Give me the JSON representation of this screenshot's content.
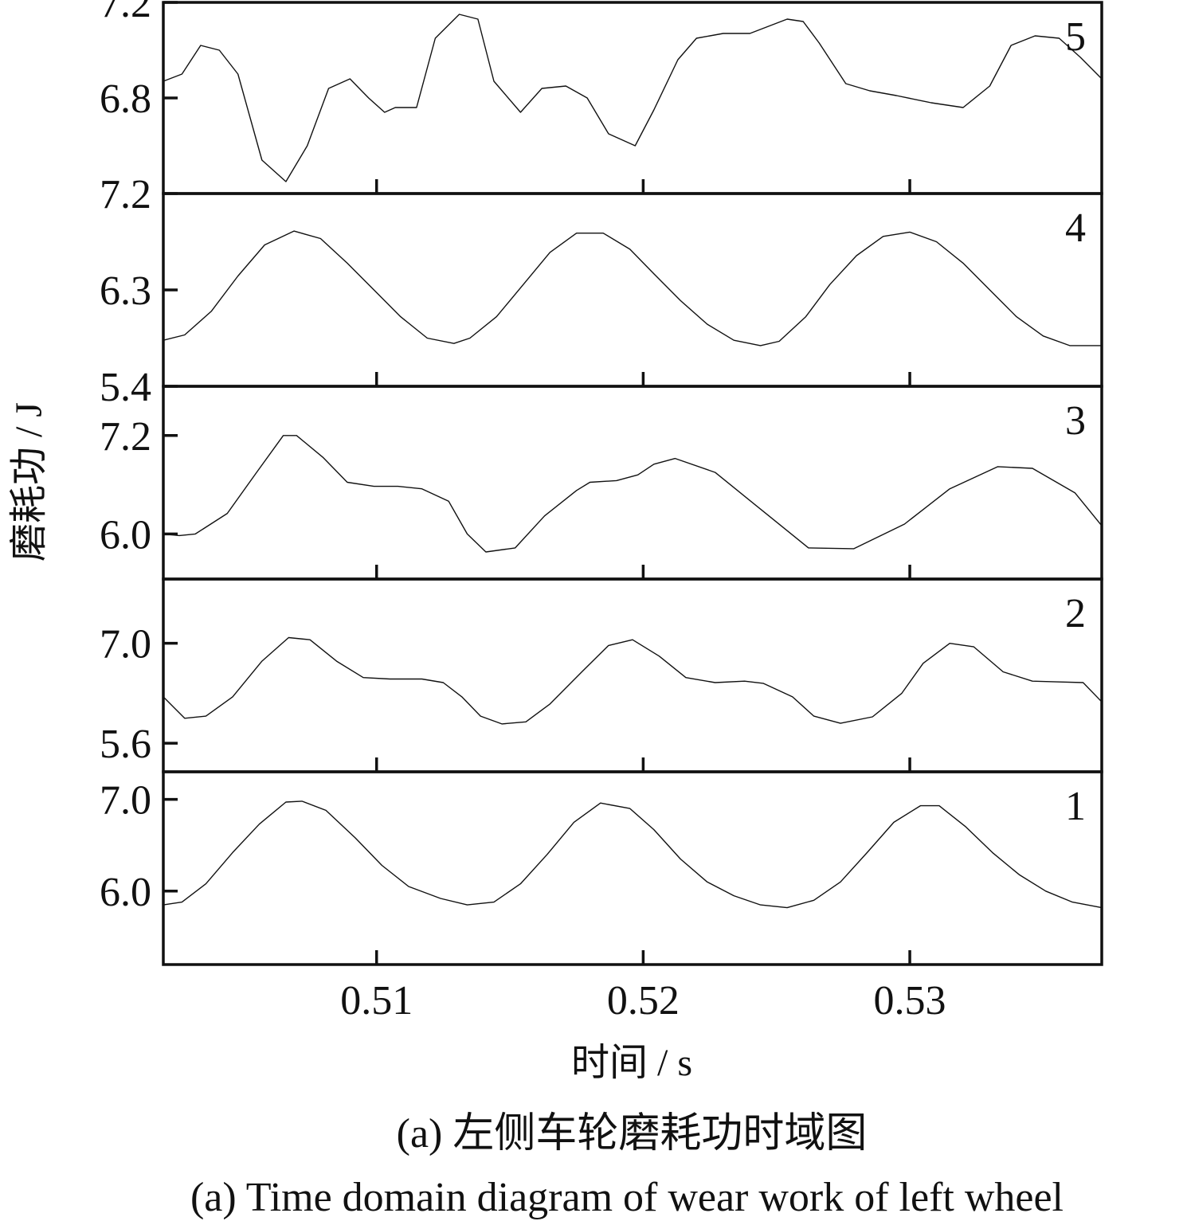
{
  "chart_data": {
    "type": "line",
    "xlabel": "时间 / s",
    "ylabel": "磨耗功 / J",
    "x_ticks": [
      0.51,
      0.52,
      0.53
    ],
    "x_tick_labels": [
      "0.51",
      "0.52",
      "0.53"
    ],
    "xlim": [
      0.502,
      0.5372
    ],
    "caption_cn": "(a) 左侧车轮磨耗功时域图",
    "caption_en": "(a) Time domain diagram of wear work of left wheel",
    "series": [
      {
        "name": "5",
        "ylim": [
          7.2,
          6.4
        ],
        "y_ticks": [
          6.8,
          7.2
        ],
        "y_tick_labels": [
          "6.8",
          "7.2"
        ],
        "x": [
          0.502,
          0.5027,
          0.5034,
          0.5041,
          0.5048,
          0.5057,
          0.5066,
          0.5074,
          0.5082,
          0.509,
          0.5097,
          0.5103,
          0.5107,
          0.5115,
          0.5122,
          0.5131,
          0.5138,
          0.5144,
          0.5154,
          0.5162,
          0.5171,
          0.5179,
          0.5187,
          0.5197,
          0.5204,
          0.5213,
          0.522,
          0.523,
          0.524,
          0.5247,
          0.5254,
          0.526,
          0.5266,
          0.5276,
          0.5285,
          0.5295,
          0.5308,
          0.532,
          0.533,
          0.5338,
          0.5347,
          0.5356,
          0.5364,
          0.5372
        ],
        "values": [
          6.87,
          6.9,
          7.02,
          7.0,
          6.9,
          6.54,
          6.45,
          6.6,
          6.84,
          6.88,
          6.8,
          6.74,
          6.76,
          6.76,
          7.05,
          7.15,
          7.13,
          6.87,
          6.74,
          6.84,
          6.85,
          6.8,
          6.65,
          6.6,
          6.75,
          6.96,
          7.05,
          7.07,
          7.07,
          7.1,
          7.13,
          7.12,
          7.03,
          6.86,
          6.83,
          6.81,
          6.78,
          6.76,
          6.85,
          7.02,
          7.06,
          7.05,
          6.97,
          6.88
        ]
      },
      {
        "name": "4",
        "ylim": [
          5.4,
          7.2
        ],
        "y_ticks": [
          7.2,
          6.3,
          5.4
        ],
        "y_tick_labels": [
          "7.2",
          "6.3",
          "5.4"
        ],
        "x": [
          0.502,
          0.5028,
          0.5038,
          0.5048,
          0.5058,
          0.5069,
          0.5079,
          0.5089,
          0.5099,
          0.5109,
          0.5119,
          0.5129,
          0.5135,
          0.5145,
          0.5155,
          0.5165,
          0.5175,
          0.5185,
          0.5195,
          0.5204,
          0.5214,
          0.5224,
          0.5234,
          0.5244,
          0.5251,
          0.5261,
          0.527,
          0.528,
          0.529,
          0.53,
          0.531,
          0.532,
          0.533,
          0.534,
          0.535,
          0.536,
          0.5372
        ],
        "values": [
          5.83,
          5.88,
          6.1,
          6.43,
          6.72,
          6.85,
          6.78,
          6.55,
          6.3,
          6.05,
          5.85,
          5.8,
          5.85,
          6.05,
          6.35,
          6.65,
          6.83,
          6.83,
          6.68,
          6.45,
          6.2,
          5.98,
          5.83,
          5.78,
          5.82,
          6.05,
          6.35,
          6.62,
          6.8,
          6.84,
          6.75,
          6.55,
          6.3,
          6.05,
          5.87,
          5.78,
          5.78
        ]
      },
      {
        "name": "3",
        "ylim": [
          5.45,
          7.8
        ],
        "y_ticks": [
          7.2,
          6.0
        ],
        "y_tick_labels": [
          "7.2",
          "6.0"
        ],
        "x": [
          0.502,
          0.5026,
          0.5032,
          0.5044,
          0.5055,
          0.5065,
          0.507,
          0.508,
          0.5089,
          0.5099,
          0.5108,
          0.5117,
          0.5127,
          0.5134,
          0.5141,
          0.5152,
          0.5163,
          0.5175,
          0.518,
          0.519,
          0.5198,
          0.5204,
          0.5212,
          0.5227,
          0.5246,
          0.5262,
          0.5279,
          0.5298,
          0.5315,
          0.5333,
          0.5346,
          0.5362,
          0.5372
        ],
        "values": [
          6.0,
          5.98,
          6.0,
          6.25,
          6.75,
          7.2,
          7.2,
          6.93,
          6.63,
          6.58,
          6.58,
          6.55,
          6.4,
          6.0,
          5.78,
          5.83,
          6.22,
          6.53,
          6.63,
          6.65,
          6.72,
          6.85,
          6.92,
          6.75,
          6.25,
          5.83,
          5.82,
          6.12,
          6.55,
          6.82,
          6.8,
          6.5,
          6.1
        ]
      },
      {
        "name": "2",
        "ylim": [
          5.2,
          7.9
        ],
        "y_ticks": [
          7.0,
          5.6
        ],
        "y_tick_labels": [
          "7.0",
          "5.6"
        ],
        "x": [
          0.502,
          0.5028,
          0.5036,
          0.5046,
          0.5057,
          0.5067,
          0.5075,
          0.5085,
          0.5095,
          0.5105,
          0.5117,
          0.5125,
          0.5132,
          0.5139,
          0.5147,
          0.5156,
          0.5165,
          0.5177,
          0.5187,
          0.5196,
          0.5206,
          0.5216,
          0.5227,
          0.5238,
          0.5245,
          0.5256,
          0.5264,
          0.5274,
          0.5286,
          0.5297,
          0.5305,
          0.5315,
          0.5324,
          0.5335,
          0.5346,
          0.5355,
          0.5365,
          0.5372
        ],
        "values": [
          6.25,
          5.95,
          5.98,
          6.25,
          6.75,
          7.08,
          7.05,
          6.75,
          6.52,
          6.5,
          6.5,
          6.45,
          6.25,
          5.98,
          5.87,
          5.9,
          6.15,
          6.6,
          6.97,
          7.05,
          6.82,
          6.52,
          6.45,
          6.47,
          6.44,
          6.25,
          5.98,
          5.88,
          5.97,
          6.3,
          6.72,
          7.0,
          6.95,
          6.6,
          6.47,
          6.46,
          6.45,
          6.18
        ]
      },
      {
        "name": "1",
        "ylim": [
          5.2,
          7.3
        ],
        "y_ticks": [
          7.0,
          6.0
        ],
        "y_tick_labels": [
          "7.0",
          "6.0"
        ],
        "x": [
          0.502,
          0.5027,
          0.5036,
          0.5046,
          0.5056,
          0.5066,
          0.5072,
          0.5081,
          0.5092,
          0.5102,
          0.5112,
          0.5124,
          0.5134,
          0.5144,
          0.5154,
          0.5164,
          0.5174,
          0.5184,
          0.5195,
          0.5204,
          0.5214,
          0.5224,
          0.5234,
          0.5244,
          0.5254,
          0.5264,
          0.5274,
          0.5284,
          0.5294,
          0.5304,
          0.5311,
          0.5321,
          0.5331,
          0.5341,
          0.5351,
          0.5361,
          0.5372
        ],
        "values": [
          5.85,
          5.88,
          6.08,
          6.42,
          6.73,
          6.97,
          6.98,
          6.88,
          6.58,
          6.28,
          6.05,
          5.92,
          5.85,
          5.88,
          6.08,
          6.4,
          6.75,
          6.96,
          6.9,
          6.67,
          6.35,
          6.1,
          5.95,
          5.85,
          5.82,
          5.9,
          6.1,
          6.42,
          6.75,
          6.93,
          6.93,
          6.7,
          6.42,
          6.18,
          6.0,
          5.88,
          5.82
        ]
      }
    ]
  }
}
